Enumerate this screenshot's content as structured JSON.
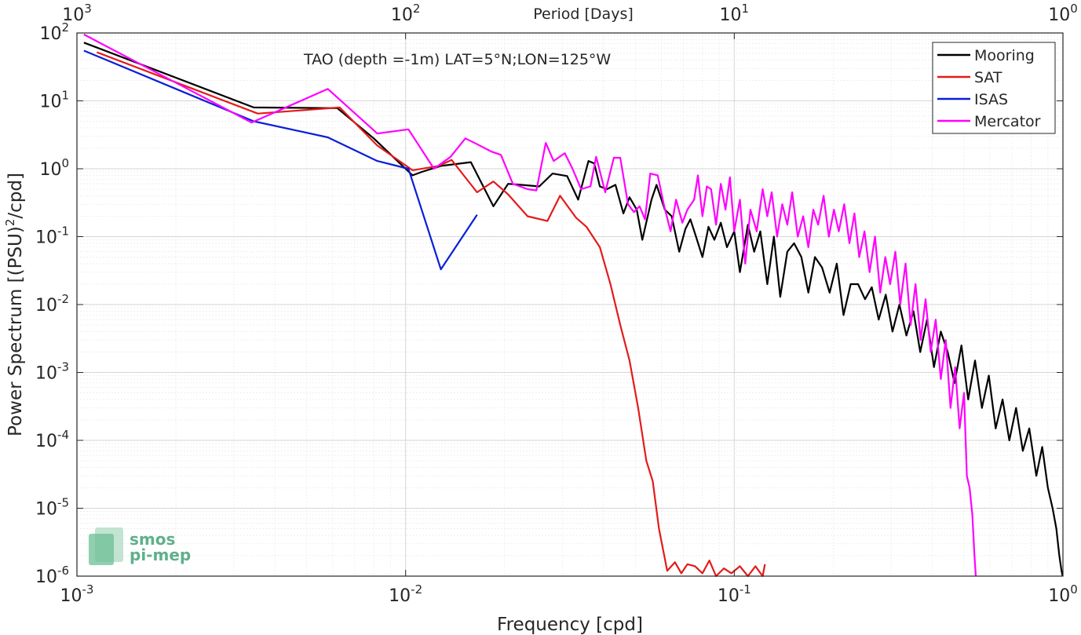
{
  "chart_data": {
    "type": "line",
    "title": "TAO (depth =-1m) LAT=5°N;LON=125°W",
    "xlabel": "Frequency [cpd]",
    "ylabel_base": "Power Spectrum [(PSU)",
    "ylabel_exp": "2",
    "ylabel_tail": "/cpd]",
    "top_xlabel": "Period [Days]",
    "x_scale": "log",
    "y_scale": "log",
    "xlim": [
      0.001,
      1
    ],
    "ylim": [
      1e-06,
      100
    ],
    "grid": true,
    "legend_position": "top-right",
    "x_ticks": [
      {
        "value": 0.001,
        "base": "10",
        "exp": "-3"
      },
      {
        "value": 0.01,
        "base": "10",
        "exp": "-2"
      },
      {
        "value": 0.1,
        "base": "10",
        "exp": "-1"
      },
      {
        "value": 1,
        "base": "10",
        "exp": "0"
      }
    ],
    "top_ticks": [
      {
        "value": 0.001,
        "base": "10",
        "exp": "3"
      },
      {
        "value": 0.01,
        "base": "10",
        "exp": "2"
      },
      {
        "value": 0.1,
        "base": "10",
        "exp": "1"
      },
      {
        "value": 1,
        "base": "10",
        "exp": "0"
      }
    ],
    "y_ticks": [
      {
        "value": 1e-06,
        "base": "10",
        "exp": "-6"
      },
      {
        "value": 1e-05,
        "base": "10",
        "exp": "-5"
      },
      {
        "value": 0.0001,
        "base": "10",
        "exp": "-4"
      },
      {
        "value": 0.001,
        "base": "10",
        "exp": "-3"
      },
      {
        "value": 0.01,
        "base": "10",
        "exp": "-2"
      },
      {
        "value": 0.1,
        "base": "10",
        "exp": "-1"
      },
      {
        "value": 1,
        "base": "10",
        "exp": "0"
      },
      {
        "value": 10,
        "base": "10",
        "exp": "1"
      },
      {
        "value": 100,
        "base": "10",
        "exp": "2"
      }
    ],
    "series": [
      {
        "name": "Mooring",
        "color": "#000000",
        "points": [
          [
            0.00105,
            72
          ],
          [
            0.00345,
            8
          ],
          [
            0.0062,
            7.8
          ],
          [
            0.008,
            2.8
          ],
          [
            0.0105,
            0.8
          ],
          [
            0.0112,
            0.9
          ],
          [
            0.0128,
            1.1
          ],
          [
            0.0158,
            1.25
          ],
          [
            0.0185,
            0.28
          ],
          [
            0.0205,
            0.6
          ],
          [
            0.0225,
            0.58
          ],
          [
            0.0255,
            0.55
          ],
          [
            0.028,
            0.85
          ],
          [
            0.031,
            0.78
          ],
          [
            0.0335,
            0.35
          ],
          [
            0.036,
            1.3
          ],
          [
            0.0375,
            1.2
          ],
          [
            0.039,
            0.55
          ],
          [
            0.041,
            0.5
          ],
          [
            0.0435,
            0.58
          ],
          [
            0.046,
            0.22
          ],
          [
            0.048,
            0.38
          ],
          [
            0.0505,
            0.25
          ],
          [
            0.0525,
            0.09
          ],
          [
            0.056,
            0.35
          ],
          [
            0.058,
            0.58
          ],
          [
            0.0615,
            0.25
          ],
          [
            0.0645,
            0.2
          ],
          [
            0.068,
            0.06
          ],
          [
            0.071,
            0.13
          ],
          [
            0.0735,
            0.18
          ],
          [
            0.0765,
            0.1
          ],
          [
            0.08,
            0.05
          ],
          [
            0.0835,
            0.14
          ],
          [
            0.087,
            0.09
          ],
          [
            0.091,
            0.16
          ],
          [
            0.095,
            0.07
          ],
          [
            0.1,
            0.12
          ],
          [
            0.104,
            0.03
          ],
          [
            0.11,
            0.15
          ],
          [
            0.115,
            0.06
          ],
          [
            0.12,
            0.12
          ],
          [
            0.126,
            0.02
          ],
          [
            0.132,
            0.1
          ],
          [
            0.138,
            0.013
          ],
          [
            0.145,
            0.06
          ],
          [
            0.152,
            0.08
          ],
          [
            0.16,
            0.05
          ],
          [
            0.168,
            0.015
          ],
          [
            0.176,
            0.05
          ],
          [
            0.185,
            0.035
          ],
          [
            0.195,
            0.015
          ],
          [
            0.205,
            0.04
          ],
          [
            0.215,
            0.007
          ],
          [
            0.226,
            0.02
          ],
          [
            0.238,
            0.02
          ],
          [
            0.25,
            0.012
          ],
          [
            0.262,
            0.018
          ],
          [
            0.275,
            0.006
          ],
          [
            0.289,
            0.014
          ],
          [
            0.303,
            0.004
          ],
          [
            0.318,
            0.01
          ],
          [
            0.334,
            0.0035
          ],
          [
            0.351,
            0.008
          ],
          [
            0.368,
            0.002
          ],
          [
            0.386,
            0.006
          ],
          [
            0.405,
            0.0012
          ],
          [
            0.425,
            0.004
          ],
          [
            0.446,
            0.002
          ],
          [
            0.468,
            0.0007
          ],
          [
            0.491,
            0.0025
          ],
          [
            0.515,
            0.0004
          ],
          [
            0.54,
            0.0015
          ],
          [
            0.567,
            0.0003
          ],
          [
            0.595,
            0.0009
          ],
          [
            0.624,
            0.00015
          ],
          [
            0.655,
            0.0004
          ],
          [
            0.687,
            0.0001
          ],
          [
            0.72,
            0.0003
          ],
          [
            0.755,
            7e-05
          ],
          [
            0.79,
            0.00015
          ],
          [
            0.83,
            3e-05
          ],
          [
            0.865,
            8e-05
          ],
          [
            0.9,
            2e-05
          ],
          [
            0.93,
            1e-05
          ],
          [
            0.955,
            5e-06
          ],
          [
            0.975,
            2e-06
          ],
          [
            0.99,
            1.2e-06
          ],
          [
            0.998,
            1e-06
          ]
        ]
      },
      {
        "name": "SAT",
        "color": "#e41a1a",
        "points": [
          [
            0.00115,
            52
          ],
          [
            0.00355,
            6.5
          ],
          [
            0.0063,
            8
          ],
          [
            0.0082,
            2.2
          ],
          [
            0.0105,
            0.95
          ],
          [
            0.0126,
            1.1
          ],
          [
            0.0138,
            1.35
          ],
          [
            0.0165,
            0.45
          ],
          [
            0.0185,
            0.65
          ],
          [
            0.0205,
            0.42
          ],
          [
            0.0235,
            0.2
          ],
          [
            0.027,
            0.17
          ],
          [
            0.0295,
            0.4
          ],
          [
            0.033,
            0.19
          ],
          [
            0.0355,
            0.14
          ],
          [
            0.039,
            0.07
          ],
          [
            0.042,
            0.02
          ],
          [
            0.045,
            0.005
          ],
          [
            0.048,
            0.0015
          ],
          [
            0.051,
            0.0003
          ],
          [
            0.054,
            5e-05
          ],
          [
            0.0565,
            2.5e-05
          ],
          [
            0.059,
            5e-06
          ],
          [
            0.0625,
            1.2e-06
          ],
          [
            0.066,
            1.6e-06
          ],
          [
            0.069,
            1.1e-06
          ],
          [
            0.072,
            1.5e-06
          ],
          [
            0.076,
            1.4e-06
          ],
          [
            0.08,
            1.1e-06
          ],
          [
            0.084,
            1.7e-06
          ],
          [
            0.088,
            1e-06
          ],
          [
            0.093,
            1.3e-06
          ],
          [
            0.098,
            1.1e-06
          ],
          [
            0.104,
            1.4e-06
          ],
          [
            0.11,
            1e-06
          ],
          [
            0.116,
            1.4e-06
          ],
          [
            0.122,
            1e-06
          ],
          [
            0.124,
            1.5e-06
          ]
        ]
      },
      {
        "name": "ISAS",
        "color": "#0a1fd8",
        "points": [
          [
            0.00105,
            55
          ],
          [
            0.00345,
            5
          ],
          [
            0.0058,
            2.9
          ],
          [
            0.0082,
            1.3
          ],
          [
            0.0102,
            1.0
          ],
          [
            0.0128,
            0.033
          ],
          [
            0.0165,
            0.21
          ]
        ]
      },
      {
        "name": "Mercator",
        "color": "#ff00ff",
        "points": [
          [
            0.00105,
            95
          ],
          [
            0.0034,
            4.8
          ],
          [
            0.0058,
            15
          ],
          [
            0.0082,
            3.3
          ],
          [
            0.0102,
            3.8
          ],
          [
            0.0122,
            1.0
          ],
          [
            0.0137,
            1.5
          ],
          [
            0.0152,
            2.8
          ],
          [
            0.0165,
            2.3
          ],
          [
            0.0182,
            1.8
          ],
          [
            0.0195,
            1.6
          ],
          [
            0.0212,
            0.6
          ],
          [
            0.0235,
            0.5
          ],
          [
            0.025,
            0.48
          ],
          [
            0.0267,
            2.4
          ],
          [
            0.0282,
            1.3
          ],
          [
            0.0305,
            1.7
          ],
          [
            0.0322,
            1.0
          ],
          [
            0.0342,
            0.5
          ],
          [
            0.0365,
            0.55
          ],
          [
            0.038,
            1.5
          ],
          [
            0.0405,
            0.45
          ],
          [
            0.043,
            1.45
          ],
          [
            0.045,
            1.45
          ],
          [
            0.0475,
            0.3
          ],
          [
            0.0495,
            0.23
          ],
          [
            0.0515,
            0.28
          ],
          [
            0.0535,
            0.18
          ],
          [
            0.0555,
            0.85
          ],
          [
            0.0585,
            0.8
          ],
          [
            0.061,
            0.3
          ],
          [
            0.064,
            0.12
          ],
          [
            0.0665,
            0.35
          ],
          [
            0.0695,
            0.16
          ],
          [
            0.072,
            0.25
          ],
          [
            0.0755,
            0.35
          ],
          [
            0.0775,
            0.8
          ],
          [
            0.08,
            0.2
          ],
          [
            0.0825,
            0.55
          ],
          [
            0.085,
            0.5
          ],
          [
            0.088,
            0.15
          ],
          [
            0.091,
            0.6
          ],
          [
            0.094,
            0.25
          ],
          [
            0.097,
            0.75
          ],
          [
            0.1,
            0.12
          ],
          [
            0.104,
            0.35
          ],
          [
            0.108,
            0.04
          ],
          [
            0.112,
            0.25
          ],
          [
            0.117,
            0.12
          ],
          [
            0.122,
            0.5
          ],
          [
            0.126,
            0.2
          ],
          [
            0.13,
            0.45
          ],
          [
            0.135,
            0.1
          ],
          [
            0.14,
            0.3
          ],
          [
            0.145,
            0.15
          ],
          [
            0.15,
            0.45
          ],
          [
            0.156,
            0.1
          ],
          [
            0.162,
            0.2
          ],
          [
            0.168,
            0.07
          ],
          [
            0.174,
            0.25
          ],
          [
            0.18,
            0.15
          ],
          [
            0.187,
            0.4
          ],
          [
            0.194,
            0.1
          ],
          [
            0.201,
            0.25
          ],
          [
            0.208,
            0.12
          ],
          [
            0.216,
            0.3
          ],
          [
            0.224,
            0.08
          ],
          [
            0.232,
            0.22
          ],
          [
            0.24,
            0.05
          ],
          [
            0.249,
            0.12
          ],
          [
            0.258,
            0.03
          ],
          [
            0.268,
            0.1
          ],
          [
            0.278,
            0.015
          ],
          [
            0.288,
            0.05
          ],
          [
            0.298,
            0.02
          ],
          [
            0.309,
            0.06
          ],
          [
            0.32,
            0.01
          ],
          [
            0.332,
            0.04
          ],
          [
            0.344,
            0.005
          ],
          [
            0.356,
            0.02
          ],
          [
            0.369,
            0.003
          ],
          [
            0.382,
            0.012
          ],
          [
            0.396,
            0.002
          ],
          [
            0.41,
            0.006
          ],
          [
            0.425,
            0.0008
          ],
          [
            0.44,
            0.003
          ],
          [
            0.455,
            0.0003
          ],
          [
            0.47,
            0.0012
          ],
          [
            0.485,
            0.00015
          ],
          [
            0.5,
            0.0005
          ],
          [
            0.51,
            3e-05
          ],
          [
            0.52,
            2e-05
          ],
          [
            0.53,
            8e-06
          ],
          [
            0.538,
            2e-06
          ],
          [
            0.543,
            1e-06
          ]
        ]
      }
    ]
  },
  "watermark": {
    "line1": "smos",
    "line2": "pi-mep",
    "color": "#5fb08a"
  }
}
